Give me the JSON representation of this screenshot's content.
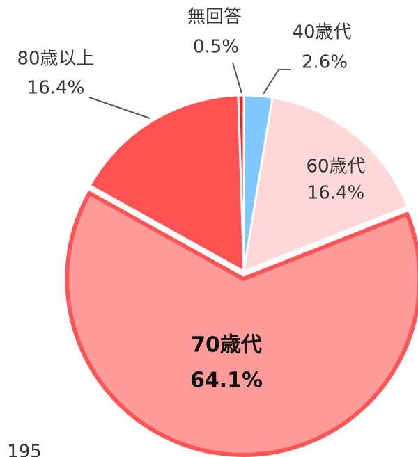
{
  "chart_data": {
    "type": "pie",
    "categories": [
      "40歳代",
      "60歳代",
      "70歳代",
      "80歳以上",
      "無回答"
    ],
    "values": [
      2.6,
      16.4,
      64.1,
      16.4,
      0.5
    ],
    "value_labels": [
      "2.6%",
      "16.4%",
      "64.1%",
      "16.4%",
      "0.5%"
    ],
    "colors": [
      "#80c8ff",
      "#ffd9d9",
      "#ff9b9b",
      "#ff5252",
      "#e02828"
    ],
    "note": "195"
  }
}
